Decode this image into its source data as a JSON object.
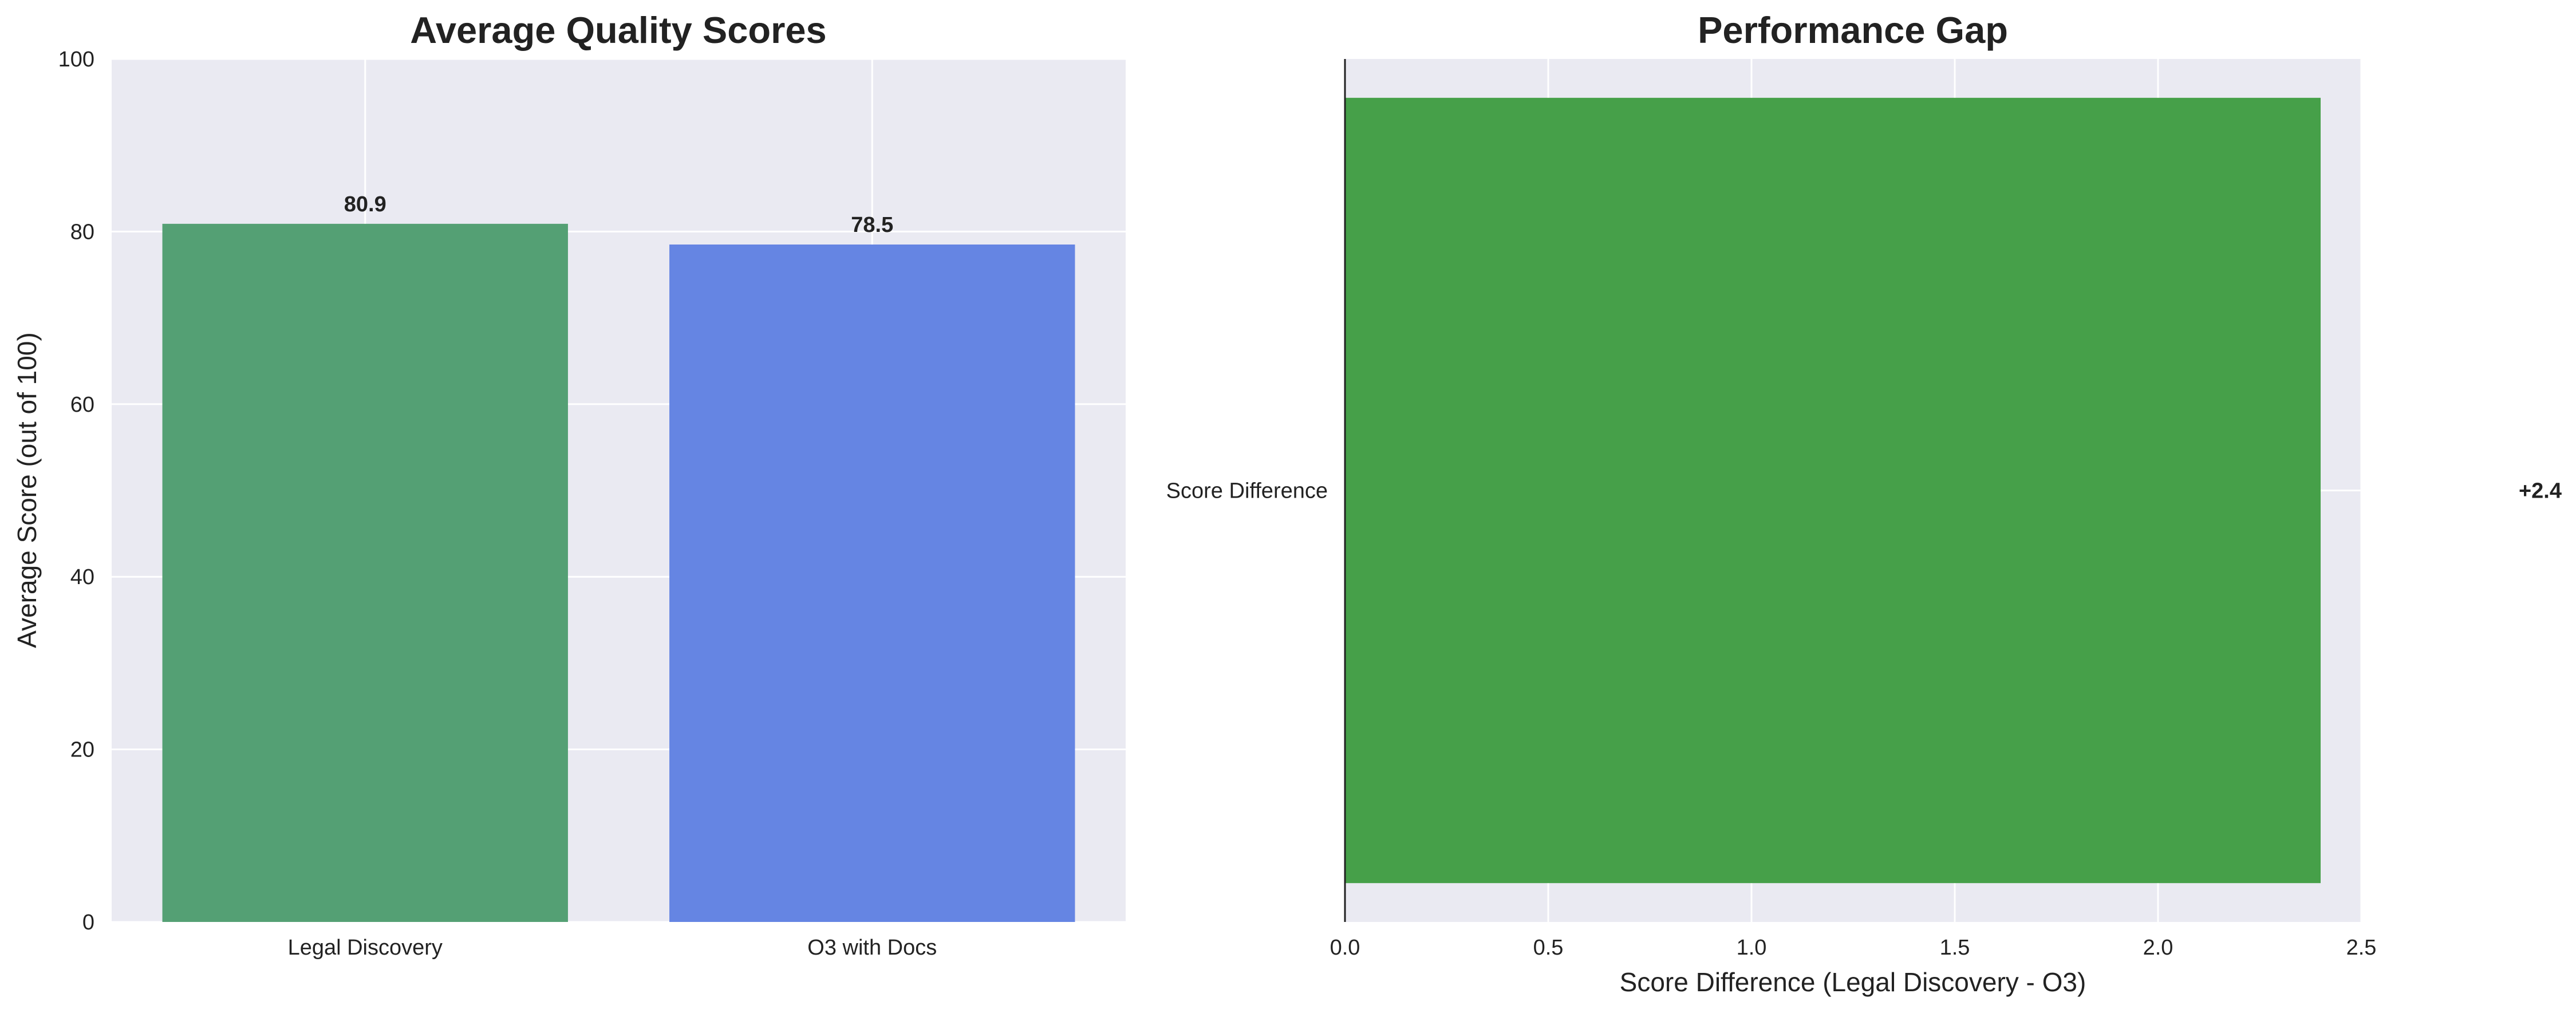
{
  "chart_data": [
    {
      "type": "bar",
      "title": "Average Quality Scores",
      "xlabel": "",
      "ylabel": "Average Score (out of 100)",
      "categories": [
        "Legal Discovery",
        "O3 with Docs"
      ],
      "values": [
        80.9,
        78.5
      ],
      "value_labels": [
        "80.9",
        "78.5"
      ],
      "colors": [
        "#54a074",
        "#6585e3"
      ],
      "ylim": [
        0,
        100
      ],
      "yticks": [
        0,
        20,
        40,
        60,
        80,
        100
      ],
      "ytick_labels": [
        "0",
        "20",
        "40",
        "60",
        "80",
        "100"
      ],
      "grid": true
    },
    {
      "type": "bar",
      "orientation": "horizontal",
      "title": "Performance Gap",
      "xlabel": "Score Difference (Legal Discovery - O3)",
      "ylabel": "",
      "categories": [
        "Score Difference"
      ],
      "values": [
        2.4
      ],
      "value_labels": [
        "+2.4"
      ],
      "colors": [
        "#46a049"
      ],
      "xlim": [
        0,
        2.5
      ],
      "xticks": [
        0,
        0.5,
        1.0,
        1.5,
        2.0,
        2.5
      ],
      "xtick_labels": [
        "0.0",
        "0.5",
        "1.0",
        "1.5",
        "2.0",
        "2.5"
      ],
      "grid": true
    }
  ],
  "colors": {
    "plot_background": "#eaeaf2",
    "grid": "#ffffff",
    "text": "#222222"
  }
}
